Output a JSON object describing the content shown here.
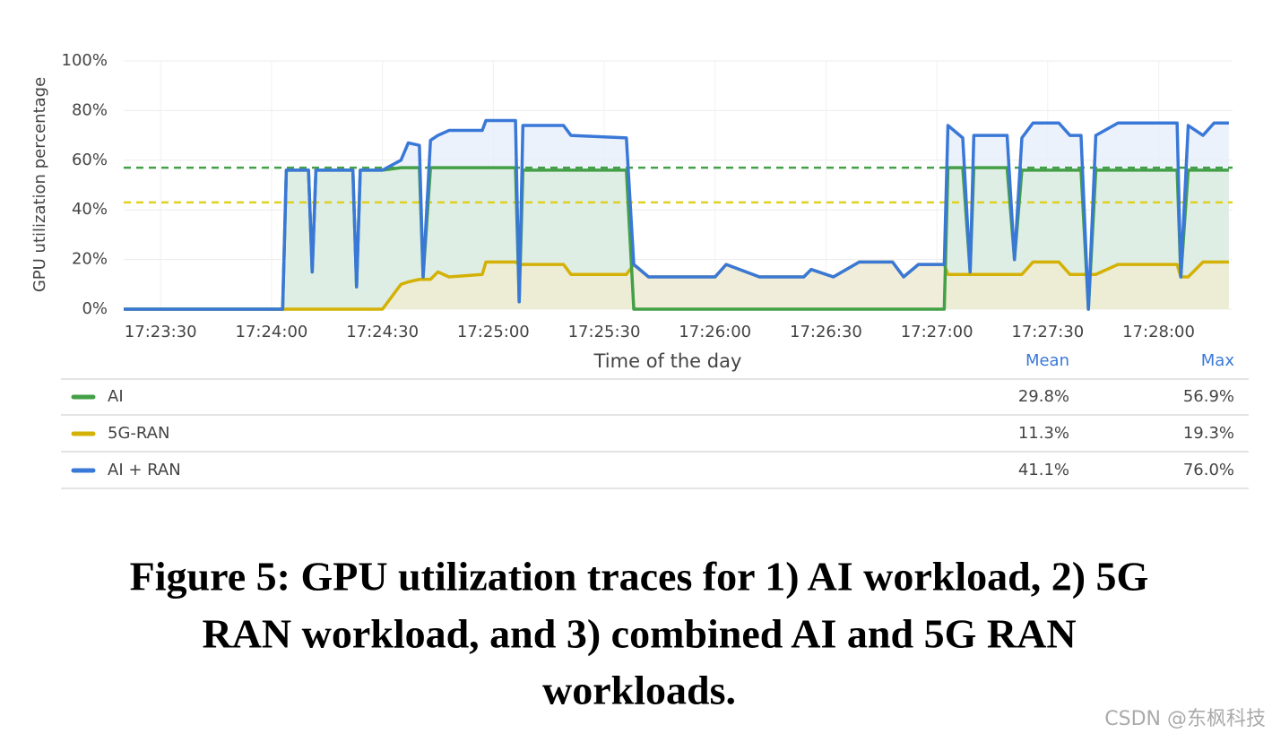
{
  "chart_data": {
    "type": "line",
    "y_label": "GPU utilization percentage",
    "x_label": "Time of the day",
    "x": [
      "17:23:20",
      "17:24:03",
      "17:24:04",
      "17:24:10",
      "17:24:11",
      "17:24:12",
      "17:24:22",
      "17:24:23",
      "17:24:24",
      "17:24:30",
      "17:24:35",
      "17:24:37",
      "17:24:40",
      "17:24:41",
      "17:24:43",
      "17:24:45",
      "17:24:48",
      "17:24:57",
      "17:24:58",
      "17:25:06",
      "17:25:07",
      "17:25:08",
      "17:25:19",
      "17:25:21",
      "17:25:36",
      "17:25:38",
      "17:25:42",
      "17:26:00",
      "17:26:03",
      "17:26:12",
      "17:26:24",
      "17:26:26",
      "17:26:32",
      "17:26:39",
      "17:26:48",
      "17:26:51",
      "17:26:55",
      "17:27:02",
      "17:27:03",
      "17:27:07",
      "17:27:09",
      "17:27:10",
      "17:27:19",
      "17:27:21",
      "17:27:23",
      "17:27:26",
      "17:27:33",
      "17:27:36",
      "17:27:39",
      "17:27:41",
      "17:27:43",
      "17:27:49",
      "17:28:05",
      "17:28:06",
      "17:28:08",
      "17:28:12",
      "17:28:15",
      "17:28:19"
    ],
    "series": [
      {
        "name": "AI + RAN",
        "color": "#3a78d8",
        "fill": "#e6eefb",
        "values": [
          0,
          0,
          56,
          56,
          15,
          56,
          56,
          9,
          56,
          56,
          60,
          67,
          66,
          13,
          68,
          70,
          72,
          72,
          76,
          76,
          3,
          74,
          74,
          70,
          69,
          18,
          13,
          13,
          18,
          13,
          13,
          16,
          13,
          19,
          19,
          13,
          18,
          18,
          74,
          69,
          15,
          70,
          70,
          20,
          69,
          75,
          75,
          70,
          70,
          0,
          70,
          75,
          75,
          13,
          74,
          70,
          75,
          75
        ]
      },
      {
        "name": "AI",
        "color": "#43a047",
        "fill": "#d9ecdc",
        "values": [
          0,
          0,
          56,
          56,
          15,
          56,
          56,
          9,
          56,
          56,
          57,
          57,
          57,
          13,
          57,
          57,
          57,
          57,
          57,
          57,
          3,
          56,
          56,
          56,
          56,
          0,
          0,
          0,
          0,
          0,
          0,
          0,
          0,
          0,
          0,
          0,
          0,
          0,
          57,
          57,
          15,
          57,
          57,
          20,
          56,
          56,
          56,
          56,
          56,
          0,
          56,
          56,
          56,
          13,
          56,
          56,
          56,
          56
        ]
      },
      {
        "name": "5G-RAN",
        "color": "#d4b106",
        "fill": "#f1ecd0",
        "values": [
          0,
          0,
          0,
          0,
          0,
          0,
          0,
          0,
          0,
          0,
          10,
          11,
          12,
          12,
          12,
          15,
          13,
          14,
          19,
          19,
          18,
          18,
          18,
          14,
          14,
          18,
          13,
          13,
          18,
          13,
          13,
          16,
          13,
          19,
          19,
          13,
          18,
          18,
          14,
          14,
          14,
          14,
          14,
          14,
          14,
          19,
          19,
          14,
          14,
          14,
          14,
          18,
          18,
          13,
          13,
          19,
          19,
          19
        ]
      }
    ],
    "legend_order": [
      1,
      2,
      0
    ],
    "reference_lines": [
      {
        "value": 57,
        "color": "#43a047"
      },
      {
        "value": 43,
        "color": "#e0d020"
      }
    ],
    "xlim": [
      "17:23:20",
      "17:28:20"
    ],
    "xticks": [
      "17:23:30",
      "17:24:00",
      "17:24:30",
      "17:25:00",
      "17:25:30",
      "17:26:00",
      "17:26:30",
      "17:27:00",
      "17:27:30",
      "17:28:00"
    ],
    "ylim": [
      0,
      100
    ],
    "yticks": [
      {
        "value": 0,
        "label": "0%"
      },
      {
        "value": 20,
        "label": "20%"
      },
      {
        "value": 40,
        "label": "40%"
      },
      {
        "value": 60,
        "label": "60%"
      },
      {
        "value": 80,
        "label": "80%"
      },
      {
        "value": 100,
        "label": "100%"
      }
    ],
    "grid": true,
    "stats_headers": [
      "Mean",
      "Max"
    ],
    "stats": [
      [
        "41.1%",
        "76.0%"
      ],
      [
        "29.8%",
        "56.9%"
      ],
      [
        "11.3%",
        "19.3%"
      ]
    ]
  },
  "caption": [
    "Figure 5: GPU utilization traces for 1) AI workload, 2) 5G",
    "RAN workload, and 3) combined AI and 5G RAN",
    "workloads."
  ],
  "watermark": "CSDN @东枫科技"
}
